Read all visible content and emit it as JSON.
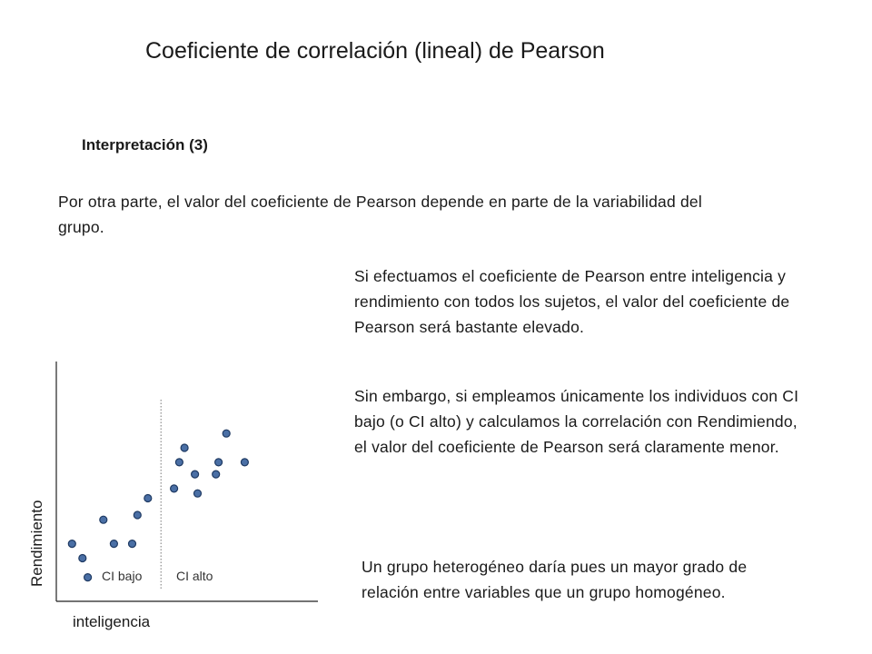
{
  "slide": {
    "title": "Coeficiente de correlación (lineal) de Pearson",
    "subtitle": "Interpretación (3)",
    "paragraphs": {
      "intro": "Por otra parte, el valor del coeficiente de Pearson depende en parte de la variabilidad del grupo.",
      "all_subjects": "Si efectuamos el coeficiente de Pearson entre inteligencia y rendimiento con todos los sujetos, el valor del coeficiente de Pearson será bastante elevado.",
      "restricted": "Sin embargo, si empleamos únicamente los individuos con CI bajo (o CI alto) y calculamos la correlación con Rendimiendo, el valor del coeficiente de Pearson será claramente menor.",
      "conclusion": "Un grupo heterogéneo daría pues un mayor grado de relación entre variables que un grupo homogéneo."
    }
  },
  "chart_data": {
    "type": "scatter",
    "xlabel": "inteligencia",
    "ylabel": "Rendimiento",
    "group_labels": {
      "low": "CI bajo",
      "high": "CI alto"
    },
    "divider_x": 0.4,
    "point_color": "#4a6fa5",
    "point_stroke": "#1f3a63",
    "points": [
      {
        "x": 0.06,
        "y": 0.24
      },
      {
        "x": 0.1,
        "y": 0.18
      },
      {
        "x": 0.12,
        "y": 0.1
      },
      {
        "x": 0.18,
        "y": 0.34
      },
      {
        "x": 0.22,
        "y": 0.24
      },
      {
        "x": 0.29,
        "y": 0.24
      },
      {
        "x": 0.31,
        "y": 0.36
      },
      {
        "x": 0.35,
        "y": 0.43
      },
      {
        "x": 0.45,
        "y": 0.47
      },
      {
        "x": 0.47,
        "y": 0.58
      },
      {
        "x": 0.49,
        "y": 0.64
      },
      {
        "x": 0.53,
        "y": 0.53
      },
      {
        "x": 0.54,
        "y": 0.45
      },
      {
        "x": 0.61,
        "y": 0.53
      },
      {
        "x": 0.62,
        "y": 0.58
      },
      {
        "x": 0.65,
        "y": 0.7
      },
      {
        "x": 0.72,
        "y": 0.58
      }
    ]
  }
}
